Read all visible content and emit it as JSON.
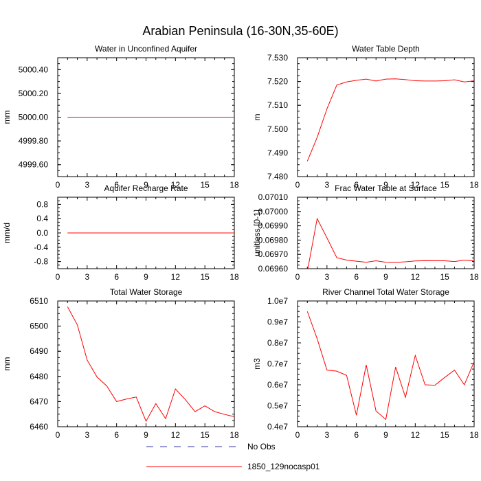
{
  "title": "Arabian Peninsula (16-30N,35-60E)",
  "legend": {
    "items": [
      {
        "label": "No Obs",
        "color": "#3333aa",
        "dash": true
      },
      {
        "label": "1850_129nocasp01",
        "color": "#ff0000",
        "dash": false
      }
    ]
  },
  "chart_data": [
    {
      "type": "line",
      "title": "Water in Unconfined Aquifer",
      "ylabel": "mm",
      "xlim": [
        0,
        18
      ],
      "ylim": [
        4999.5,
        5000.5
      ],
      "xticks": [
        0,
        3,
        6,
        9,
        12,
        15,
        18
      ],
      "yticks": [
        4999.6,
        4999.8,
        5000.0,
        5000.2,
        5000.4
      ],
      "ytick_labels": [
        "4999.60",
        "4999.80",
        "5000.00",
        "5000.20",
        "5000.40"
      ],
      "series": [
        {
          "name": "1850_129nocasp01",
          "x": [
            1,
            2,
            3,
            4,
            5,
            6,
            7,
            8,
            9,
            10,
            11,
            12,
            13,
            14,
            15,
            16,
            17,
            18
          ],
          "values": [
            5000,
            5000,
            5000,
            5000,
            5000,
            5000,
            5000,
            5000,
            5000,
            5000,
            5000,
            5000,
            5000,
            5000,
            5000,
            5000,
            5000,
            5000
          ]
        }
      ]
    },
    {
      "type": "line",
      "title": "Water Table Depth",
      "ylabel": "m",
      "xlim": [
        0,
        18
      ],
      "ylim": [
        7.48,
        7.53
      ],
      "xticks": [
        0,
        3,
        6,
        9,
        12,
        15,
        18
      ],
      "yticks": [
        7.48,
        7.49,
        7.5,
        7.51,
        7.52,
        7.53
      ],
      "ytick_labels": [
        "7.480",
        "7.490",
        "7.500",
        "7.510",
        "7.520",
        "7.530"
      ],
      "series": [
        {
          "name": "1850_129nocasp01",
          "x": [
            1,
            2,
            3,
            4,
            5,
            6,
            7,
            8,
            9,
            10,
            11,
            12,
            13,
            14,
            15,
            16,
            17,
            18
          ],
          "values": [
            7.4865,
            7.4965,
            7.5085,
            7.5185,
            7.5198,
            7.5205,
            7.521,
            7.5202,
            7.521,
            7.5211,
            7.5208,
            7.5203,
            7.5202,
            7.5202,
            7.5203,
            7.5207,
            7.5198,
            7.5203
          ]
        }
      ]
    },
    {
      "type": "line",
      "title": "Aquifer Recharge Rate",
      "ylabel": "mm/d",
      "xlim": [
        0,
        18
      ],
      "ylim": [
        -1.0,
        1.0
      ],
      "xticks": [
        0,
        3,
        6,
        9,
        12,
        15,
        18
      ],
      "yticks": [
        -0.8,
        -0.4,
        0.0,
        0.4,
        0.8
      ],
      "ytick_labels": [
        "-0.8",
        "-0.4",
        "0.0",
        "0.4",
        "0.8"
      ],
      "series": [
        {
          "name": "1850_129nocasp01",
          "x": [
            1,
            2,
            3,
            4,
            5,
            6,
            7,
            8,
            9,
            10,
            11,
            12,
            13,
            14,
            15,
            16,
            17,
            18
          ],
          "values": [
            0,
            0,
            0,
            0,
            0,
            0,
            0,
            0,
            0,
            0,
            0,
            0,
            0,
            0,
            0,
            0,
            0,
            0
          ]
        }
      ]
    },
    {
      "type": "line",
      "title": "Frac Water Table at Surface",
      "ylabel": "unitless [0-1]",
      "xlim": [
        0,
        18
      ],
      "ylim": [
        0.0696,
        0.0701
      ],
      "xticks": [
        0,
        3,
        6,
        9,
        12,
        15,
        18
      ],
      "yticks": [
        0.0696,
        0.0697,
        0.0698,
        0.0699,
        0.07,
        0.0701
      ],
      "ytick_labels": [
        "0.06960",
        "0.06970",
        "0.06980",
        "0.06990",
        "0.07000",
        "0.07010"
      ],
      "series": [
        {
          "name": "1850_129nocasp01",
          "x": [
            1,
            2,
            3,
            4,
            5,
            6,
            7,
            8,
            9,
            10,
            11,
            12,
            13,
            14,
            15,
            16,
            17,
            18
          ],
          "values": [
            0.06958,
            0.06995,
            0.069815,
            0.069677,
            0.06966,
            0.069652,
            0.069645,
            0.069655,
            0.069645,
            0.069644,
            0.069648,
            0.069654,
            0.069656,
            0.069655,
            0.069655,
            0.06965,
            0.06966,
            0.069654
          ]
        }
      ]
    },
    {
      "type": "line",
      "title": "Total Water Storage",
      "ylabel": "mm",
      "xlim": [
        0,
        18
      ],
      "ylim": [
        6460,
        6510
      ],
      "xticks": [
        0,
        3,
        6,
        9,
        12,
        15,
        18
      ],
      "yticks": [
        6460,
        6470,
        6480,
        6490,
        6500,
        6510
      ],
      "ytick_labels": [
        "6460",
        "6470",
        "6480",
        "6490",
        "6500",
        "6510"
      ],
      "series": [
        {
          "name": "1850_129nocasp01",
          "x": [
            1,
            2,
            3,
            4,
            5,
            6,
            7,
            8,
            9,
            10,
            11,
            12,
            13,
            14,
            15,
            16,
            17,
            18
          ],
          "values": [
            6507.7,
            6500.5,
            6486.5,
            6479.8,
            6476.2,
            6470.0,
            6471.0,
            6471.8,
            6462.2,
            6469.2,
            6463.2,
            6475.0,
            6470.8,
            6466.0,
            6468.3,
            6466.0,
            6464.9,
            6464.0
          ]
        }
      ]
    },
    {
      "type": "line",
      "title": "River Channel Total Water Storage",
      "ylabel": "m3",
      "xlim": [
        0,
        18
      ],
      "ylim": [
        4000000,
        10000000
      ],
      "xticks": [
        0,
        3,
        6,
        9,
        12,
        15,
        18
      ],
      "yticks": [
        4000000,
        5000000,
        6000000,
        7000000,
        8000000,
        9000000,
        10000000
      ],
      "ytick_labels": [
        "0.4e7",
        "0.5e7",
        "0.6e7",
        "0.7e7",
        "0.8e7",
        "0.9e7",
        "1.0e7"
      ],
      "series": [
        {
          "name": "1850_129nocasp01",
          "x": [
            1,
            2,
            3,
            4,
            5,
            6,
            7,
            8,
            9,
            10,
            11,
            12,
            13,
            14,
            15,
            16,
            17,
            18
          ],
          "values": [
            9500000,
            8200000,
            6700000,
            6650000,
            6450000,
            4550000,
            6950000,
            4750000,
            4350000,
            6850000,
            5400000,
            7400000,
            6000000,
            5980000,
            6350000,
            6700000,
            6000000,
            7100000
          ]
        }
      ]
    }
  ]
}
